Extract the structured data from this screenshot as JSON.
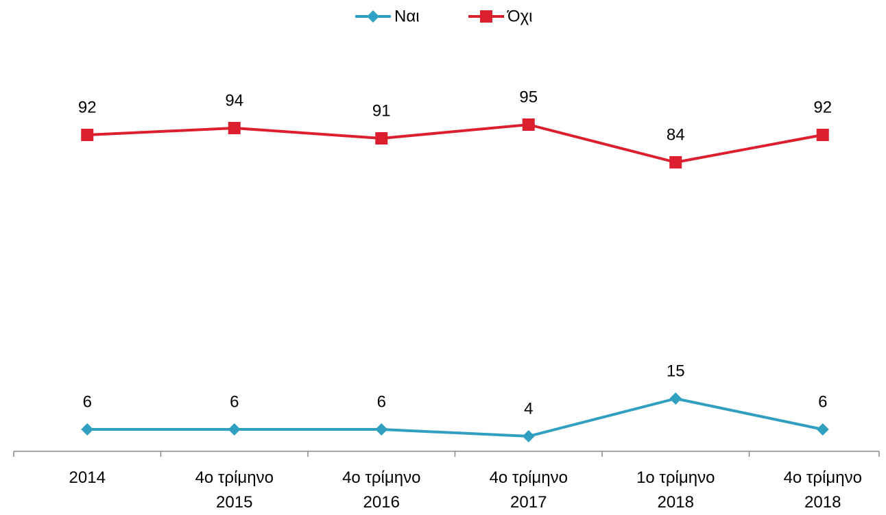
{
  "chart_data": {
    "type": "line",
    "categories": [
      "2014",
      "4ο τρίμηνο 2015",
      "4ο τρίμηνο 2016",
      "4ο τρίμηνο 2017",
      "1ο τρίμηνο 2018",
      "4ο τρίμηνο 2018"
    ],
    "series": [
      {
        "name": "Ναι",
        "color": "#31a0c0",
        "marker": "diamond",
        "values": [
          6,
          6,
          6,
          4,
          15,
          6
        ]
      },
      {
        "name": "Όχι",
        "color": "#dc1f2e",
        "marker": "square",
        "values": [
          92,
          94,
          91,
          95,
          84,
          92
        ]
      }
    ],
    "ylim": [
      0,
      120
    ],
    "legend": "top",
    "grid": false
  }
}
